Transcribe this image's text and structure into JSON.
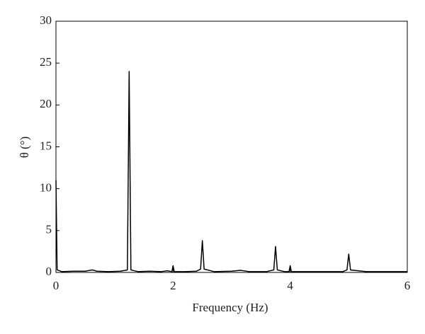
{
  "chart_data": {
    "type": "line",
    "x_label": "Frequency (Hz)",
    "y_label": "θ (°)",
    "x": [
      0,
      0.02,
      0.1,
      0.3,
      0.5,
      0.62,
      0.7,
      0.9,
      1.1,
      1.22,
      1.25,
      1.28,
      1.4,
      1.6,
      1.8,
      1.9,
      1.98,
      2.0,
      2.02,
      2.2,
      2.4,
      2.47,
      2.5,
      2.53,
      2.7,
      3.0,
      3.15,
      3.3,
      3.6,
      3.72,
      3.75,
      3.78,
      3.9,
      3.98,
      4.0,
      4.02,
      4.3,
      4.6,
      4.9,
      4.97,
      5.0,
      5.03,
      5.3,
      5.6,
      6.0
    ],
    "series": [
      {
        "color": "#000000",
        "values": [
          11,
          0.3,
          0.1,
          0.15,
          0.15,
          0.3,
          0.15,
          0.1,
          0.15,
          0.3,
          24,
          0.3,
          0.1,
          0.15,
          0.1,
          0.2,
          0.1,
          0.8,
          0.1,
          0.1,
          0.15,
          0.4,
          3.8,
          0.4,
          0.1,
          0.15,
          0.25,
          0.1,
          0.1,
          0.3,
          3.1,
          0.3,
          0.1,
          0.1,
          0.8,
          0.1,
          0.1,
          0.1,
          0.1,
          0.3,
          2.2,
          0.3,
          0.1,
          0.1,
          0.1
        ]
      }
    ],
    "xlim": [
      0,
      6
    ],
    "ylim": [
      0,
      30
    ],
    "xticks": [
      0,
      2,
      4,
      6
    ],
    "yticks": [
      0,
      5,
      10,
      15,
      20,
      25,
      30
    ],
    "grid": false
  }
}
